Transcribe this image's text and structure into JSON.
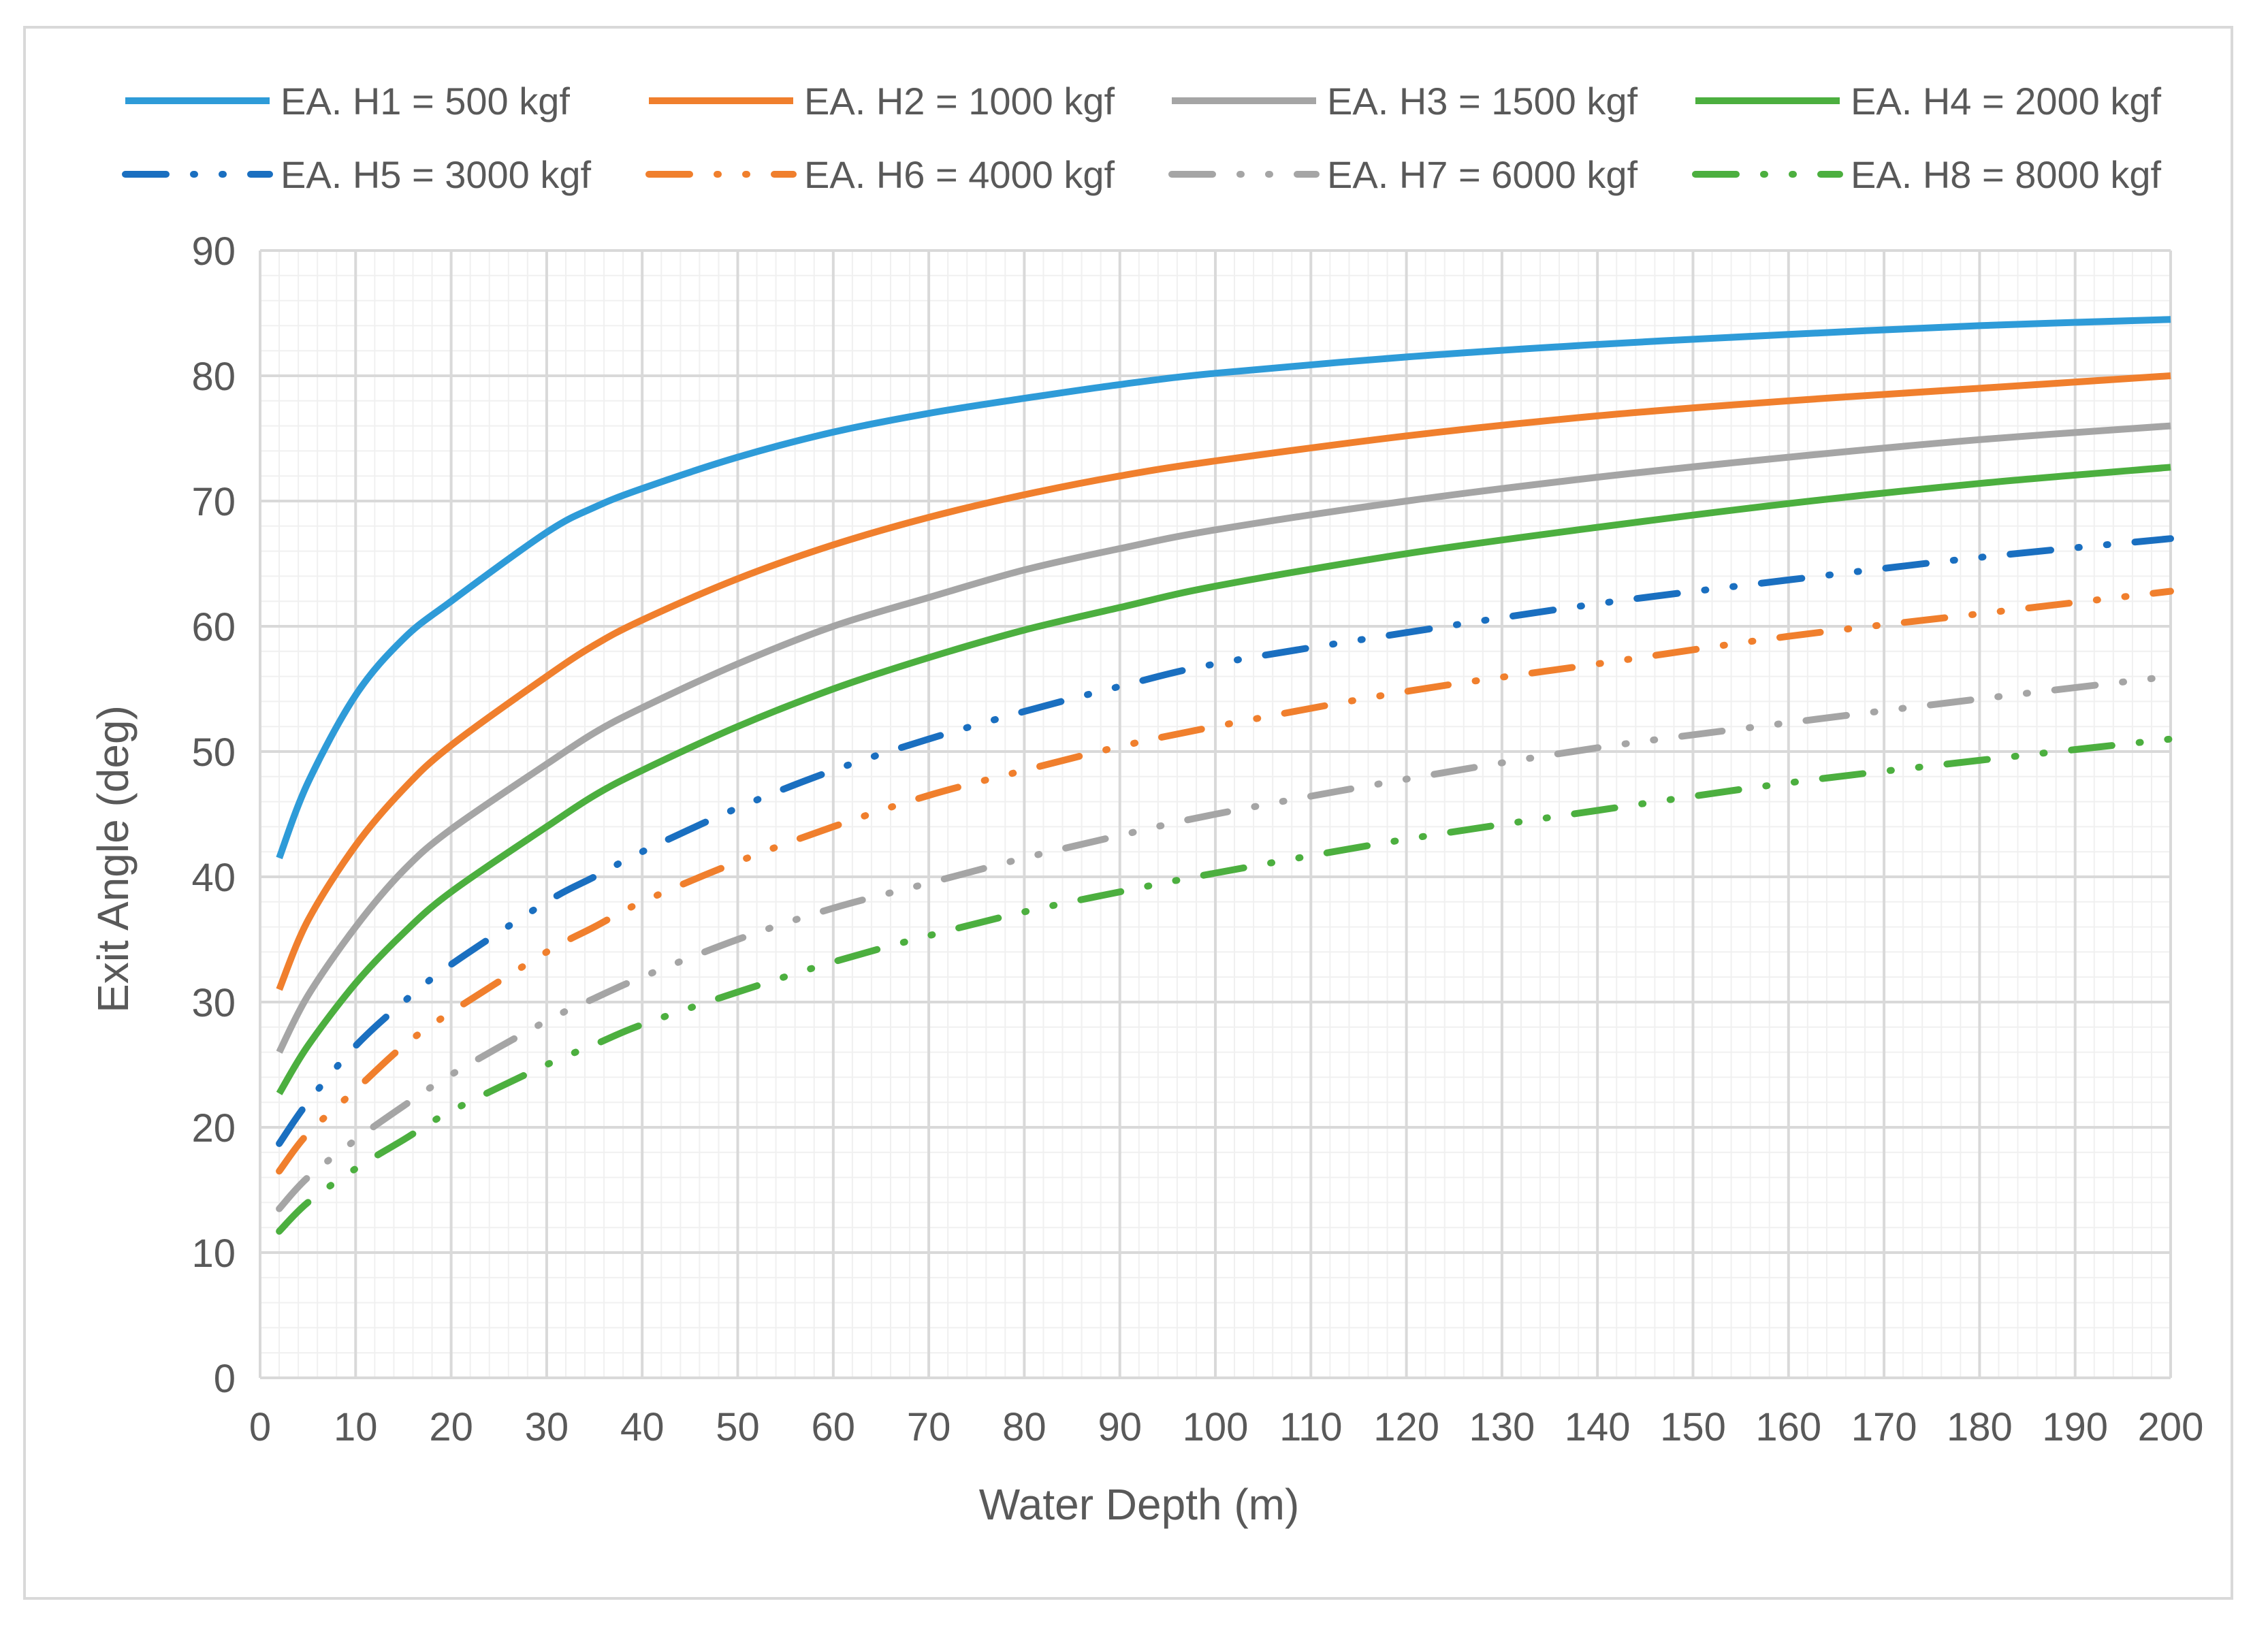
{
  "chart_data": {
    "type": "line",
    "title": "",
    "xlabel": "Water Depth (m)",
    "ylabel": "Exit Angle (deg)",
    "xlim": [
      0,
      200
    ],
    "ylim": [
      0,
      90
    ],
    "x_ticks": [
      0,
      10,
      20,
      30,
      40,
      50,
      60,
      70,
      80,
      90,
      100,
      110,
      120,
      130,
      140,
      150,
      160,
      170,
      180,
      190,
      200
    ],
    "y_ticks": [
      0,
      10,
      20,
      30,
      40,
      50,
      60,
      70,
      80,
      90
    ],
    "grid": true,
    "legend_position": "top",
    "x": [
      2,
      5,
      10,
      15,
      20,
      30,
      35,
      40,
      50,
      60,
      70,
      80,
      90,
      100,
      120,
      140,
      160,
      180,
      200
    ],
    "series": [
      {
        "name": "EA. H1 = 500 kgf",
        "color": "#2e9bd8",
        "style": "solid",
        "values": [
          41.5,
          47.5,
          54.5,
          59.0,
          62.0,
          67.5,
          69.5,
          71.0,
          73.5,
          75.5,
          77.0,
          78.2,
          79.3,
          80.2,
          81.5,
          82.5,
          83.3,
          84.0,
          84.5
        ]
      },
      {
        "name": "EA. H2 = 1000 kgf",
        "color": "#f07f2d",
        "style": "solid",
        "values": [
          31.0,
          36.5,
          42.5,
          47.0,
          50.5,
          56.0,
          58.5,
          60.5,
          63.8,
          66.5,
          68.7,
          70.5,
          72.0,
          73.2,
          75.2,
          76.8,
          78.0,
          79.0,
          80.0
        ]
      },
      {
        "name": "EA. H3 = 1500 kgf",
        "color": "#a5a5a5",
        "style": "solid",
        "values": [
          26.0,
          30.5,
          36.0,
          40.5,
          43.8,
          49.0,
          51.5,
          53.5,
          57.0,
          60.0,
          62.3,
          64.5,
          66.2,
          67.7,
          70.0,
          71.9,
          73.5,
          74.9,
          76.0
        ]
      },
      {
        "name": "EA. H4 = 2000 kgf",
        "color": "#4caf3f",
        "style": "solid",
        "values": [
          22.7,
          26.5,
          31.5,
          35.5,
          38.8,
          44.0,
          46.5,
          48.5,
          52.0,
          55.0,
          57.5,
          59.7,
          61.5,
          63.2,
          65.8,
          67.9,
          69.8,
          71.4,
          72.7
        ]
      },
      {
        "name": "EA. H5 = 3000 kgf",
        "color": "#1a6fc0",
        "style": "dashdotdot",
        "values": [
          18.7,
          22.0,
          26.5,
          30.0,
          33.0,
          38.0,
          40.0,
          42.0,
          45.5,
          48.5,
          51.0,
          53.2,
          55.2,
          57.0,
          59.5,
          61.8,
          63.7,
          65.5,
          67.0
        ]
      },
      {
        "name": "EA. H6 = 4000 kgf",
        "color": "#f07f2d",
        "style": "dashdotdot",
        "values": [
          16.5,
          19.5,
          23.0,
          26.5,
          29.2,
          34.0,
          36.0,
          38.0,
          41.2,
          44.0,
          46.5,
          48.5,
          50.4,
          52.0,
          54.8,
          57.0,
          59.2,
          61.0,
          62.8
        ]
      },
      {
        "name": "EA. H7 = 6000 kgf",
        "color": "#a5a5a5",
        "style": "dashdotdot",
        "values": [
          13.5,
          16.0,
          19.0,
          21.7,
          24.2,
          28.5,
          30.3,
          32.0,
          35.0,
          37.5,
          39.5,
          41.5,
          43.3,
          45.0,
          47.8,
          50.3,
          52.3,
          54.2,
          56.0
        ]
      },
      {
        "name": "EA. H8 = 8000 kgf",
        "color": "#4caf3f",
        "style": "dashdotdot",
        "values": [
          11.7,
          14.0,
          16.7,
          19.0,
          21.3,
          25.0,
          26.6,
          28.2,
          30.8,
          33.2,
          35.3,
          37.2,
          38.8,
          40.3,
          43.0,
          45.3,
          47.5,
          49.3,
          51.0
        ]
      }
    ]
  }
}
